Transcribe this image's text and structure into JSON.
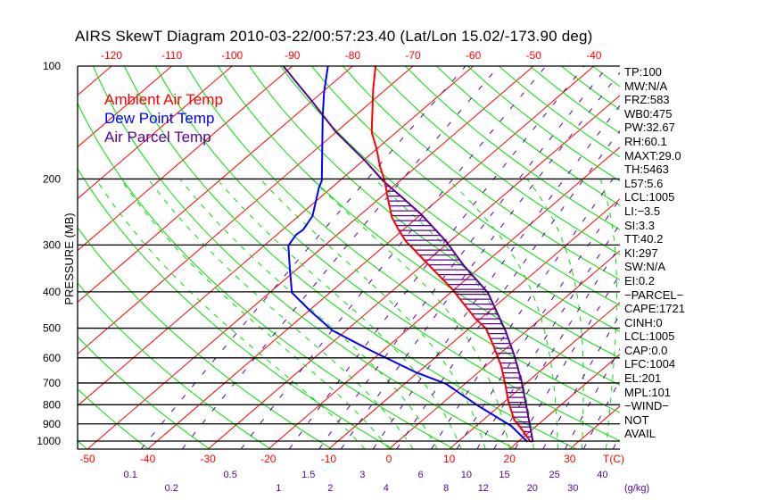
{
  "chart_data": {
    "type": "line",
    "title": "AIRS SkewT Diagram 2010-03-22/00:57:23.40 (Lat/Lon 15.02/-173.90 deg)",
    "ylabel": "PRESSURE (MB)",
    "xlabel": "T(C)",
    "mixing_ratio_unit": "(g/kg)",
    "pressure_ticks": [
      100,
      200,
      300,
      400,
      500,
      600,
      700,
      800,
      900,
      1000
    ],
    "ylim_mb": [
      1050,
      100
    ],
    "bottom_temp_ticks": [
      -50,
      -40,
      -30,
      -20,
      -10,
      0,
      10,
      20,
      30
    ],
    "top_temp_ticks": [
      -120,
      -110,
      -100,
      -90,
      -80,
      -70,
      -60,
      -50,
      -40
    ],
    "mixing_ratios": [
      "0.1",
      "0.2",
      "0.5",
      "1",
      "1.5",
      "2",
      "3",
      "4",
      "6",
      "8",
      "10",
      "12",
      "15",
      "20",
      "25",
      "30",
      "40"
    ],
    "legend": [
      {
        "label": "Ambient Air Temp",
        "color": "#ff0000"
      },
      {
        "label": "Dew Point Temp",
        "color": "#0000ff"
      },
      {
        "label": "Air Parcel Temp",
        "color": "#5a0096"
      }
    ],
    "series": [
      {
        "name": "Ambient Air Temp",
        "color": "#ff0000",
        "p": [
          100,
          115,
          150,
          166,
          186,
          203,
          223,
          253,
          273,
          293,
          301,
          332,
          392,
          472,
          501,
          556,
          631,
          704,
          786,
          877,
          941,
          1005
        ],
        "t": [
          -76.2,
          -72.2,
          -64.1,
          -60.1,
          -55.9,
          -52.4,
          -49.0,
          -44.3,
          -40.8,
          -37.4,
          -35.8,
          -30.2,
          -20.6,
          -10.8,
          -7.2,
          -2.7,
          2.6,
          6.7,
          10.7,
          15.1,
          18.8,
          22.1
        ]
      },
      {
        "name": "Dew Point Temp",
        "color": "#0000ff",
        "p": [
          100,
          117,
          136,
          202,
          211,
          251,
          273,
          282,
          301,
          351,
          402,
          447,
          507,
          575,
          656,
          704,
          807,
          911,
          1005
        ],
        "t": [
          -84.1,
          -79.8,
          -75.3,
          -63.0,
          -62.1,
          -57.7,
          -56.6,
          -56.8,
          -56.0,
          -50.9,
          -46.3,
          -40.1,
          -32.3,
          -21.8,
          -10.3,
          -3.1,
          6.6,
          15.8,
          21.6
        ]
      },
      {
        "name": "Air Parcel Temp",
        "color": "#5a0096",
        "p": [
          100,
          109,
          124,
          150,
          179,
          203,
          223,
          249,
          293,
          340,
          402,
          507,
          588,
          693,
          816,
          941,
          1005
        ],
        "t": [
          -91.5,
          -86.9,
          -80.0,
          -70.0,
          -59.6,
          -52.6,
          -46.7,
          -39.9,
          -30.7,
          -23.1,
          -13.8,
          -3.6,
          2.5,
          8.9,
          14.9,
          20.1,
          22.5
        ]
      }
    ],
    "cape_shading": {
      "from_mb": 203,
      "to_mb": 1005,
      "color": "#5a0096"
    }
  },
  "stats": [
    "TP:100",
    "MW:N/A",
    "FRZ:583",
    "WB0:475",
    "PW:32.67",
    "RH:60.1",
    "MAXT:29.0",
    "TH:5463",
    "L57:5.6",
    "LCL:1005",
    "LI:−3.5",
    "SI:3.3",
    "TT:40.2",
    "KI:297",
    "SW:N/A",
    "EI:0.2",
    "−PARCEL−",
    "CAPE:1721",
    "CINH:0",
    "LCL:1005",
    "CAP:0.0",
    "LFC:1004",
    "EL:201",
    "MPL:101",
    "−WIND−",
    " NOT",
    "AVAIL"
  ],
  "colors": {
    "isotherm": "#ff0000",
    "dry_adiabat": "#00e000",
    "moist_adiabat": "#00e000",
    "mixing_ratio": "#5a0096",
    "grid": "#000000"
  }
}
